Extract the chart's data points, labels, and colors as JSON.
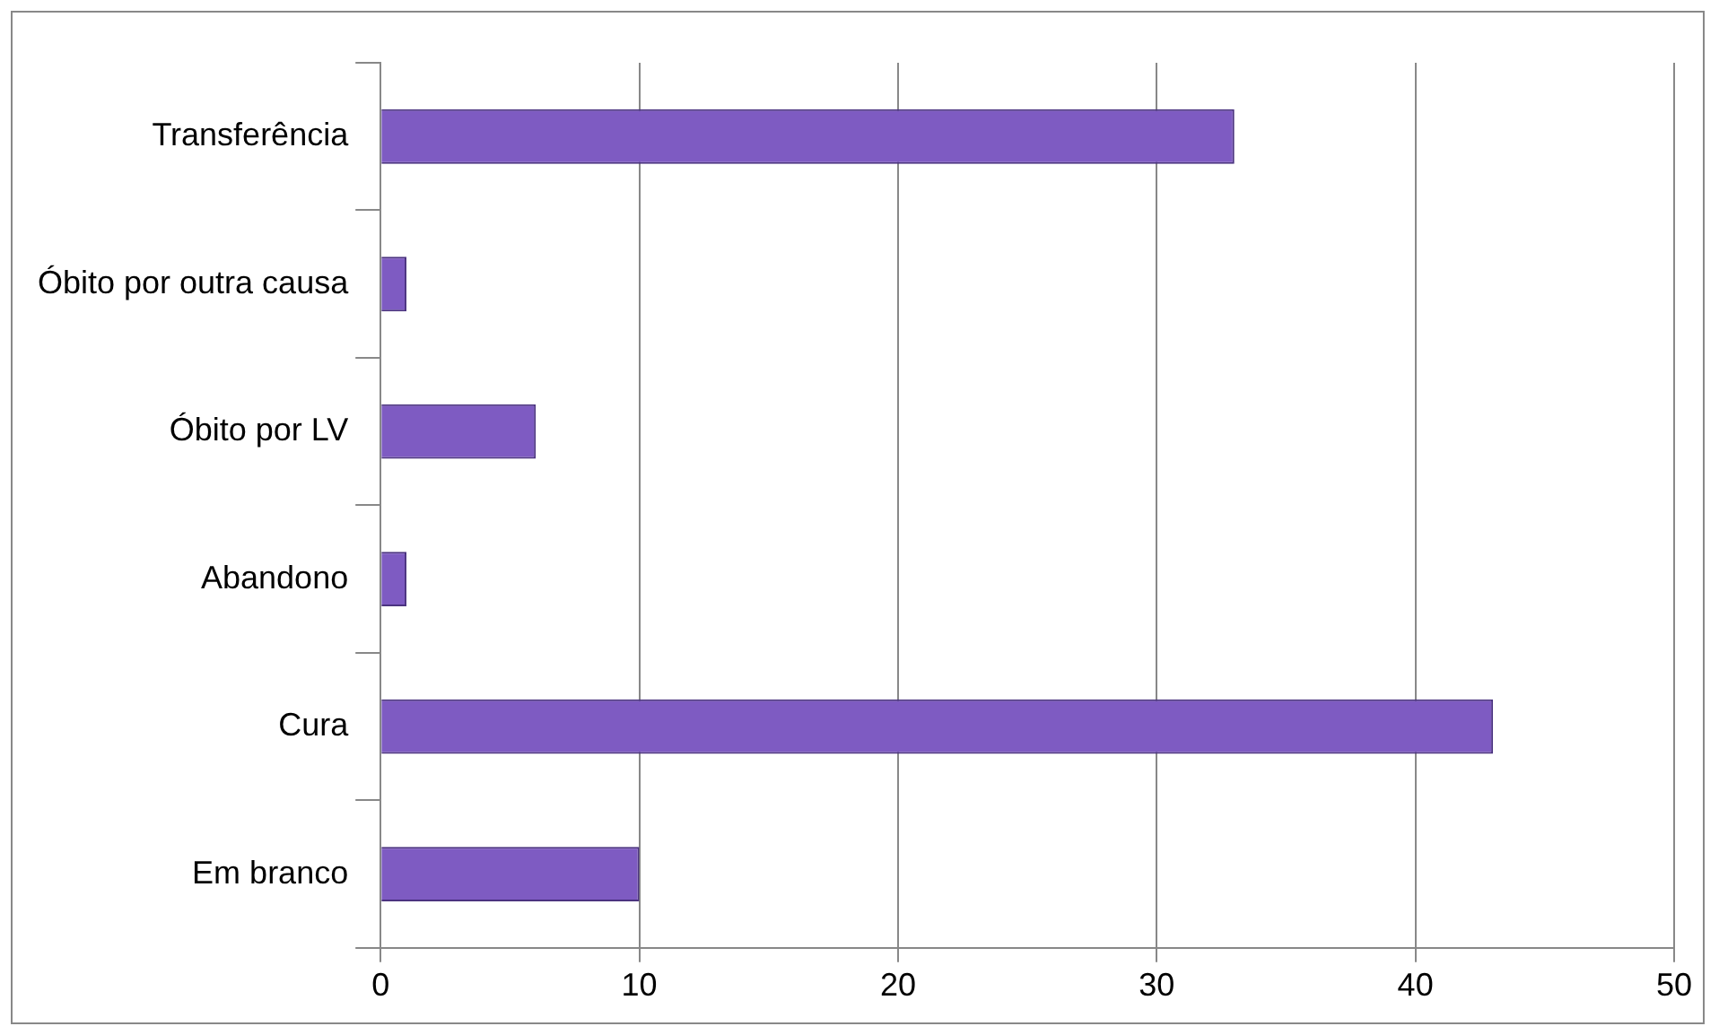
{
  "chart_data": {
    "type": "bar",
    "orientation": "horizontal",
    "categories": [
      "Transferência",
      "Óbito por outra causa",
      "Óbito por LV",
      "Abandono",
      "Cura",
      "Em branco"
    ],
    "values": [
      33,
      1,
      6,
      1,
      43,
      10
    ],
    "color": "#7e5bc2",
    "xlim": [
      0,
      50
    ],
    "xticks": [
      0,
      10,
      20,
      30,
      40,
      50
    ],
    "grid": "x",
    "legend": false
  }
}
